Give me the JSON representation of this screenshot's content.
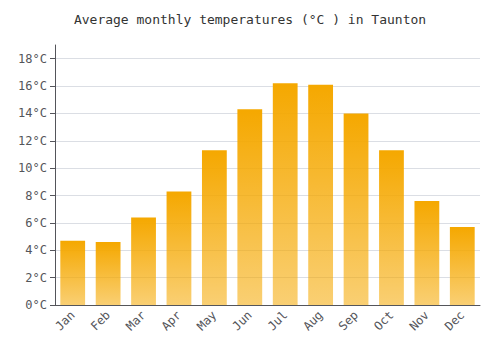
{
  "chart_data": {
    "type": "bar",
    "title": "Average monthly temperatures (°C ) in Taunton",
    "categories": [
      "Jan",
      "Feb",
      "Mar",
      "Apr",
      "May",
      "Jun",
      "Jul",
      "Aug",
      "Sep",
      "Oct",
      "Nov",
      "Dec"
    ],
    "values": [
      4.7,
      4.6,
      6.4,
      8.3,
      11.3,
      14.3,
      16.2,
      16.1,
      14.0,
      11.3,
      7.6,
      5.7
    ],
    "color": "#F5A800",
    "ylim": [
      0,
      19
    ],
    "yticks": [
      {
        "value": 0,
        "label": "0°C"
      },
      {
        "value": 2,
        "label": "2°C"
      },
      {
        "value": 4,
        "label": "4°C"
      },
      {
        "value": 6,
        "label": "6°C"
      },
      {
        "value": 8,
        "label": "8°C"
      },
      {
        "value": 10,
        "label": "10°C"
      },
      {
        "value": 12,
        "label": "12°C"
      },
      {
        "value": 14,
        "label": "14°C"
      },
      {
        "value": 16,
        "label": "16°C"
      },
      {
        "value": 18,
        "label": "18°C"
      }
    ],
    "grid": true
  }
}
